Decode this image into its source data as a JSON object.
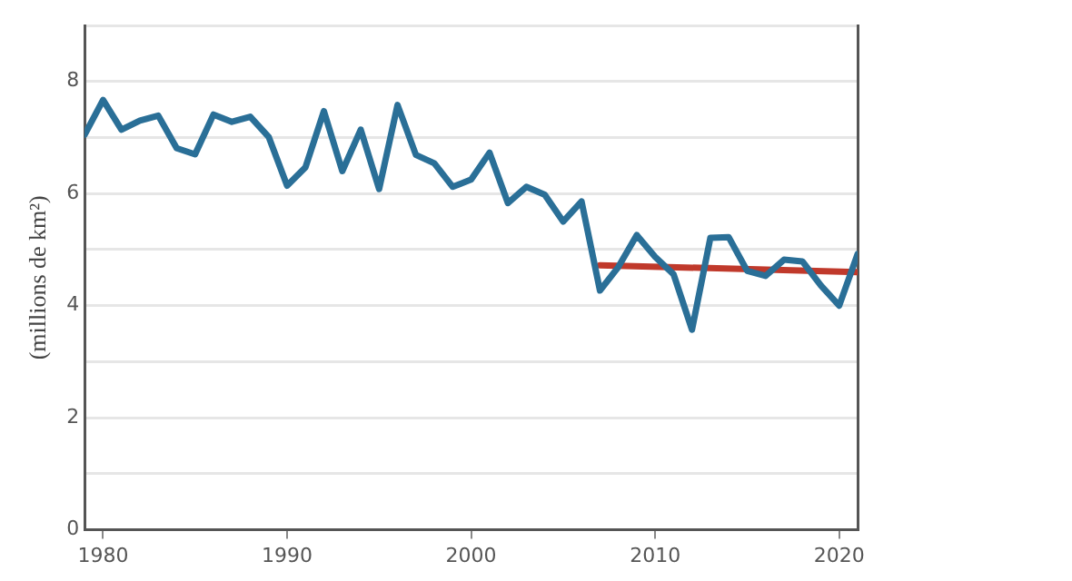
{
  "chart_data": {
    "type": "line",
    "ylabel": "(millions de km²)",
    "xlim": [
      1979,
      2021
    ],
    "xticks": [
      1980,
      1990,
      2000,
      2010,
      2020
    ],
    "ylim": [
      0,
      9
    ],
    "yticks": [
      0,
      {
        "value": 1,
        "label": null
      },
      2,
      {
        "value": 3,
        "label": null
      },
      4,
      {
        "value": 5,
        "label": null
      },
      6,
      {
        "value": 7,
        "label": null
      },
      8,
      {
        "value": 9,
        "label": null
      }
    ],
    "grid": "y",
    "legend": false,
    "marker": "none",
    "line_style": "solid",
    "series": [
      {
        "color": "#2a6f97",
        "x": [
          1979,
          1980,
          1981,
          1982,
          1983,
          1984,
          1985,
          1986,
          1987,
          1988,
          1989,
          1990,
          1991,
          1992,
          1993,
          1994,
          1995,
          1996,
          1997,
          1998,
          1999,
          2000,
          2001,
          2002,
          2003,
          2004,
          2005,
          2006,
          2007,
          2008,
          2009,
          2010,
          2011,
          2012,
          2013,
          2014,
          2015,
          2016,
          2017,
          2018,
          2019,
          2020,
          2021
        ],
        "values": [
          7.05,
          7.67,
          7.14,
          7.3,
          7.39,
          6.81,
          6.7,
          7.41,
          7.28,
          7.37,
          7.01,
          6.14,
          6.47,
          7.47,
          6.4,
          7.14,
          6.08,
          7.58,
          6.69,
          6.54,
          6.12,
          6.25,
          6.73,
          5.83,
          6.12,
          5.98,
          5.5,
          5.86,
          4.27,
          4.69,
          5.26,
          4.87,
          4.56,
          3.57,
          5.21,
          5.22,
          4.62,
          4.53,
          4.82,
          4.79,
          4.36,
          4.0,
          4.92
        ]
      },
      {
        "type": "line",
        "color": "#c0392b",
        "x": [
          2007,
          2021
        ],
        "values": [
          4.72,
          4.6
        ]
      }
    ]
  }
}
